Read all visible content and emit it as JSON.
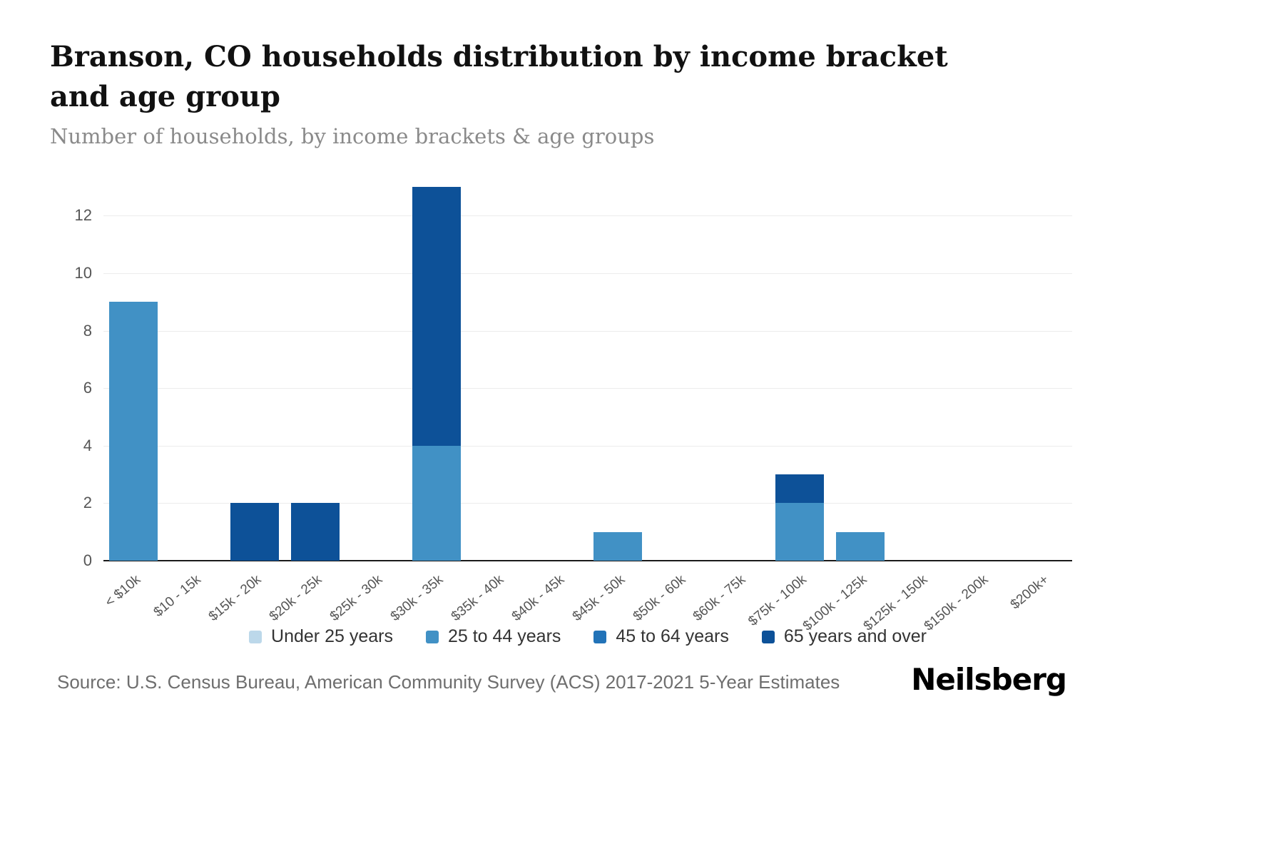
{
  "chart_data": {
    "type": "bar",
    "stacked": true,
    "title": "Branson, CO households distribution by income bracket and age group",
    "subtitle": "Number of households, by income brackets & age groups",
    "categories": [
      "< $10k",
      "$10 - 15k",
      "$15k - 20k",
      "$20k - 25k",
      "$25k - 30k",
      "$30k - 35k",
      "$35k - 40k",
      "$40k - 45k",
      "$45k - 50k",
      "$50k - 60k",
      "$60k - 75k",
      "$75k - 100k",
      "$100k - 125k",
      "$125k - 150k",
      "$150k - 200k",
      "$200k+"
    ],
    "series": [
      {
        "name": "Under 25 years",
        "color": "#bcd8ea",
        "values": [
          0,
          0,
          0,
          0,
          0,
          0,
          0,
          0,
          0,
          0,
          0,
          0,
          0,
          0,
          0,
          0
        ]
      },
      {
        "name": "25 to 44 years",
        "color": "#4191c5",
        "values": [
          9,
          0,
          0,
          0,
          0,
          4,
          0,
          0,
          1,
          0,
          0,
          2,
          1,
          0,
          0,
          0
        ]
      },
      {
        "name": "45 to 64 years",
        "color": "#2273b8",
        "values": [
          0,
          0,
          0,
          0,
          0,
          0,
          0,
          0,
          0,
          0,
          0,
          0,
          0,
          0,
          0,
          0
        ]
      },
      {
        "name": "65 years and over",
        "color": "#0d5198",
        "values": [
          0,
          0,
          2,
          2,
          0,
          9,
          0,
          0,
          0,
          0,
          0,
          1,
          0,
          0,
          0,
          0
        ]
      }
    ],
    "yticks": [
      0,
      2,
      4,
      6,
      8,
      10,
      12
    ],
    "ylim": [
      0,
      13
    ],
    "xlabel": "",
    "ylabel": "",
    "grid": true,
    "legend_position": "bottom"
  },
  "footer": {
    "source": "Source: U.S. Census Bureau, American Community Survey (ACS) 2017-2021 5-Year Estimates",
    "brand": "Neilsberg"
  }
}
